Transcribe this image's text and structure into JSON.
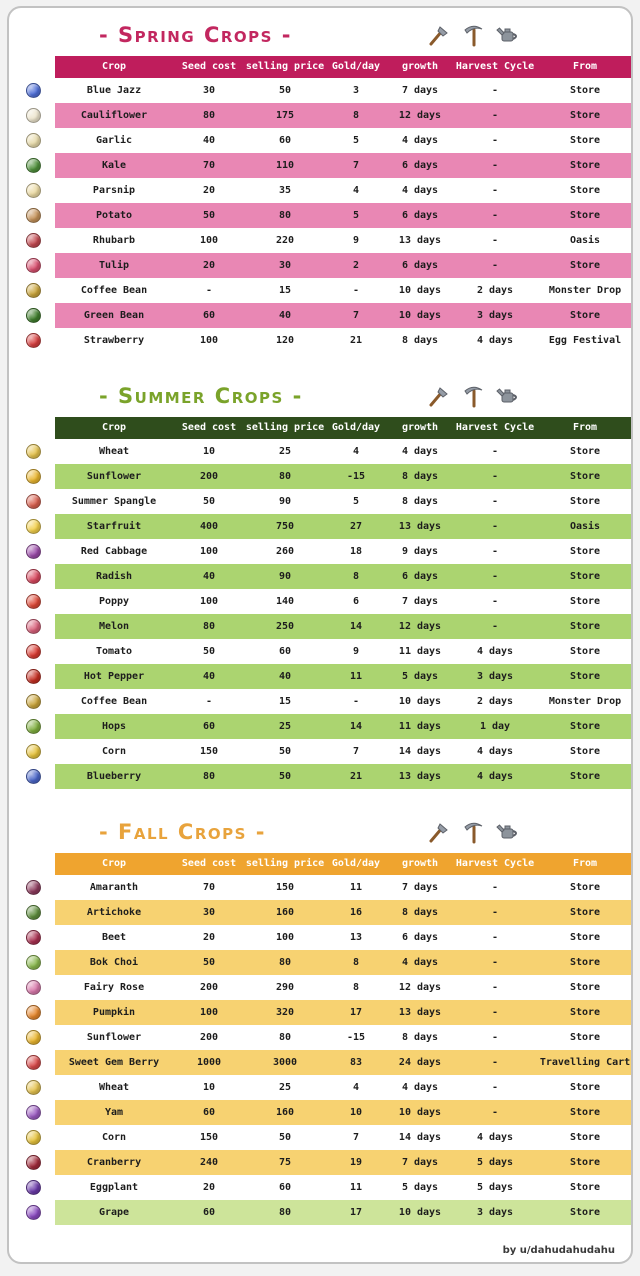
{
  "page": {
    "credit": "by u/dahudahudahu"
  },
  "chart_data": [
    {
      "type": "table",
      "id": "spring",
      "title": "- Spring Crops -",
      "colors": {
        "title": "#c2275f",
        "header_bg": "#bf1d5c",
        "alt_row": "#e987b4"
      },
      "columns": [
        "Crop",
        "Seed cost",
        "selling price",
        "Gold/day",
        "growth",
        "Harvest Cycle",
        "From"
      ],
      "rows": [
        {
          "icon": "blue-jazz-icon",
          "icon_color": "#4f6fd8",
          "cells": [
            "Blue Jazz",
            "30",
            "50",
            "3",
            "7 days",
            "-",
            "Store"
          ]
        },
        {
          "icon": "cauliflower-icon",
          "icon_color": "#ece4cc",
          "cells": [
            "Cauliflower",
            "80",
            "175",
            "8",
            "12 days",
            "-",
            "Store"
          ]
        },
        {
          "icon": "garlic-icon",
          "icon_color": "#e6d9a8",
          "cells": [
            "Garlic",
            "40",
            "60",
            "5",
            "4 days",
            "-",
            "Store"
          ]
        },
        {
          "icon": "kale-icon",
          "icon_color": "#4e8f3a",
          "cells": [
            "Kale",
            "70",
            "110",
            "7",
            "6 days",
            "-",
            "Store"
          ]
        },
        {
          "icon": "parsnip-icon",
          "icon_color": "#ead9a2",
          "cells": [
            "Parsnip",
            "20",
            "35",
            "4",
            "4 days",
            "-",
            "Store"
          ]
        },
        {
          "icon": "potato-icon",
          "icon_color": "#c49158",
          "cells": [
            "Potato",
            "50",
            "80",
            "5",
            "6 days",
            "-",
            "Store"
          ]
        },
        {
          "icon": "rhubarb-icon",
          "icon_color": "#c2484f",
          "cells": [
            "Rhubarb",
            "100",
            "220",
            "9",
            "13 days",
            "-",
            "Oasis"
          ]
        },
        {
          "icon": "tulip-icon",
          "icon_color": "#d84f6e",
          "cells": [
            "Tulip",
            "20",
            "30",
            "2",
            "6 days",
            "-",
            "Store"
          ]
        },
        {
          "icon": "coffee-bean-icon",
          "icon_color": "#c9a43a",
          "cells": [
            "Coffee Bean",
            "-",
            "15",
            "-",
            "10 days",
            "2 days",
            "Monster Drop"
          ]
        },
        {
          "icon": "green-bean-icon",
          "icon_color": "#3f7d2c",
          "cells": [
            "Green Bean",
            "60",
            "40",
            "7",
            "10 days",
            "3 days",
            "Store"
          ]
        },
        {
          "icon": "strawberry-icon",
          "icon_color": "#d63f3f",
          "cells": [
            "Strawberry",
            "100",
            "120",
            "21",
            "8 days",
            "4 days",
            "Egg Festival"
          ]
        }
      ]
    },
    {
      "type": "table",
      "id": "summer",
      "title": "- Summer Crops -",
      "colors": {
        "title": "#7aa32a",
        "header_bg": "#2f4d1c",
        "alt_row": "#abd470"
      },
      "columns": [
        "Crop",
        "Seed cost",
        "selling price",
        "Gold/day",
        "growth",
        "Harvest Cycle",
        "From"
      ],
      "rows": [
        {
          "icon": "wheat-icon",
          "icon_color": "#e4c24e",
          "cells": [
            "Wheat",
            "10",
            "25",
            "4",
            "4 days",
            "-",
            "Store"
          ]
        },
        {
          "icon": "sunflower-icon",
          "icon_color": "#e9b52e",
          "cells": [
            "Sunflower",
            "200",
            "80",
            "-15",
            "8 days",
            "-",
            "Store"
          ]
        },
        {
          "icon": "summer-spangle-icon",
          "icon_color": "#d8604f",
          "cells": [
            "Summer Spangle",
            "50",
            "90",
            "5",
            "8 days",
            "-",
            "Store"
          ]
        },
        {
          "icon": "starfruit-icon",
          "icon_color": "#f2cf4a",
          "cells": [
            "Starfruit",
            "400",
            "750",
            "27",
            "13 days",
            "-",
            "Oasis"
          ]
        },
        {
          "icon": "red-cabbage-icon",
          "icon_color": "#9a4aa8",
          "cells": [
            "Red Cabbage",
            "100",
            "260",
            "18",
            "9 days",
            "-",
            "Store"
          ]
        },
        {
          "icon": "radish-icon",
          "icon_color": "#d8485e",
          "cells": [
            "Radish",
            "40",
            "90",
            "8",
            "6 days",
            "-",
            "Store"
          ]
        },
        {
          "icon": "poppy-icon",
          "icon_color": "#dd4836",
          "cells": [
            "Poppy",
            "100",
            "140",
            "6",
            "7 days",
            "-",
            "Store"
          ]
        },
        {
          "icon": "melon-icon",
          "icon_color": "#d8607a",
          "cells": [
            "Melon",
            "80",
            "250",
            "14",
            "12 days",
            "-",
            "Store"
          ]
        },
        {
          "icon": "tomato-icon",
          "icon_color": "#d93a31",
          "cells": [
            "Tomato",
            "50",
            "60",
            "9",
            "11 days",
            "4 days",
            "Store"
          ]
        },
        {
          "icon": "hot-pepper-icon",
          "icon_color": "#c42e22",
          "cells": [
            "Hot Pepper",
            "40",
            "40",
            "11",
            "5 days",
            "3 days",
            "Store"
          ]
        },
        {
          "icon": "coffee-bean-icon",
          "icon_color": "#c9a43a",
          "cells": [
            "Coffee Bean",
            "-",
            "15",
            "-",
            "10 days",
            "2 days",
            "Monster Drop"
          ]
        },
        {
          "icon": "hops-icon",
          "icon_color": "#7fae3e",
          "cells": [
            "Hops",
            "60",
            "25",
            "14",
            "11 days",
            "1 day",
            "Store"
          ]
        },
        {
          "icon": "corn-icon",
          "icon_color": "#e5c23c",
          "cells": [
            "Corn",
            "150",
            "50",
            "7",
            "14 days",
            "4 days",
            "Store"
          ]
        },
        {
          "icon": "blueberry-icon",
          "icon_color": "#4a66c8",
          "cells": [
            "Blueberry",
            "80",
            "50",
            "21",
            "13 days",
            "4 days",
            "Store"
          ]
        }
      ]
    },
    {
      "type": "table",
      "id": "fall",
      "title": "- Fall Crops -",
      "colors": {
        "title": "#e8a33c",
        "header_bg": "#efa42f",
        "alt_row": "#f7d271"
      },
      "columns": [
        "Crop",
        "Seed cost",
        "selling price",
        "Gold/day",
        "growth",
        "Harvest Cycle",
        "From"
      ],
      "rows": [
        {
          "icon": "amaranth-icon",
          "icon_color": "#8c3a5c",
          "cells": [
            "Amaranth",
            "70",
            "150",
            "11",
            "7 days",
            "-",
            "Store"
          ]
        },
        {
          "icon": "artichoke-icon",
          "icon_color": "#5f8e3e",
          "cells": [
            "Artichoke",
            "30",
            "160",
            "16",
            "8 days",
            "-",
            "Store"
          ]
        },
        {
          "icon": "beet-icon",
          "icon_color": "#a83050",
          "cells": [
            "Beet",
            "20",
            "100",
            "13",
            "6 days",
            "-",
            "Store"
          ]
        },
        {
          "icon": "bok-choi-icon",
          "icon_color": "#8ab84e",
          "cells": [
            "Bok Choi",
            "50",
            "80",
            "8",
            "4 days",
            "-",
            "Store"
          ]
        },
        {
          "icon": "fairy-rose-icon",
          "icon_color": "#d878aa",
          "cells": [
            "Fairy Rose",
            "200",
            "290",
            "8",
            "12 days",
            "-",
            "Store"
          ]
        },
        {
          "icon": "pumpkin-icon",
          "icon_color": "#e5862c",
          "cells": [
            "Pumpkin",
            "100",
            "320",
            "17",
            "13 days",
            "-",
            "Store"
          ]
        },
        {
          "icon": "sunflower-icon",
          "icon_color": "#e9b52e",
          "cells": [
            "Sunflower",
            "200",
            "80",
            "-15",
            "8 days",
            "-",
            "Store"
          ]
        },
        {
          "icon": "sweet-gem-berry-icon",
          "icon_color": "#d84a4a",
          "cells": [
            "Sweet Gem Berry",
            "1000",
            "3000",
            "83",
            "24 days",
            "-",
            "Travelling Cart"
          ]
        },
        {
          "icon": "wheat-icon",
          "icon_color": "#e4c24e",
          "cells": [
            "Wheat",
            "10",
            "25",
            "4",
            "4 days",
            "-",
            "Store"
          ]
        },
        {
          "icon": "yam-icon",
          "icon_color": "#9a5ac0",
          "cells": [
            "Yam",
            "60",
            "160",
            "10",
            "10 days",
            "-",
            "Store"
          ]
        },
        {
          "icon": "corn-icon",
          "icon_color": "#e5c23c",
          "cells": [
            "Corn",
            "150",
            "50",
            "7",
            "14 days",
            "4 days",
            "Store"
          ]
        },
        {
          "icon": "cranberry-icon",
          "icon_color": "#a02a3a",
          "cells": [
            "Cranberry",
            "240",
            "75",
            "19",
            "7 days",
            "5 days",
            "Store"
          ]
        },
        {
          "icon": "eggplant-icon",
          "icon_color": "#6a3aa8",
          "cells": [
            "Eggplant",
            "20",
            "60",
            "11",
            "5 days",
            "5 days",
            "Store"
          ]
        },
        {
          "icon": "grape-icon",
          "icon_color": "#8a4ac0",
          "row_bg": "#cde49a",
          "cells": [
            "Grape",
            "60",
            "80",
            "17",
            "10 days",
            "3 days",
            "Store"
          ]
        }
      ]
    }
  ]
}
